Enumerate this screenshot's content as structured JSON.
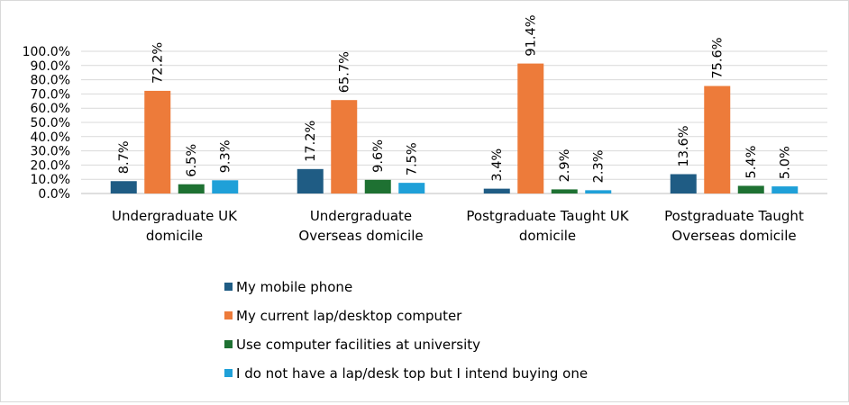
{
  "chart_data": {
    "type": "bar",
    "title": "",
    "xlabel": "",
    "ylabel": "",
    "ylim": [
      0,
      100
    ],
    "y_tick_step": 10,
    "y_tick_labels": [
      "0.0%",
      "10.0%",
      "20.0%",
      "30.0%",
      "40.0%",
      "50.0%",
      "60.0%",
      "70.0%",
      "80.0%",
      "90.0%",
      "100.0%"
    ],
    "grid": true,
    "legend_position": "bottom",
    "categories": [
      [
        "Undergraduate UK",
        "domicile"
      ],
      [
        "Undergraduate",
        "Overseas domicile"
      ],
      [
        "Postgraduate Taught UK",
        "domicile"
      ],
      [
        "Postgraduate Taught",
        "Overseas domicile"
      ]
    ],
    "series": [
      {
        "name": "My mobile phone",
        "color": "#1f5c84",
        "values": [
          8.7,
          17.2,
          3.4,
          13.6
        ],
        "labels": [
          "8.7%",
          "17.2%",
          "3.4%",
          "13.6%"
        ]
      },
      {
        "name": "My current lap/desktop computer",
        "color": "#ed7b3a",
        "values": [
          72.2,
          65.7,
          91.4,
          75.6
        ],
        "labels": [
          "72.2%",
          "65.7%",
          "91.4%",
          "75.6%"
        ]
      },
      {
        "name": "Use computer facilities at university",
        "color": "#1e7132",
        "values": [
          6.5,
          9.6,
          2.9,
          5.4
        ],
        "labels": [
          "6.5%",
          "9.6%",
          "2.9%",
          "5.4%"
        ]
      },
      {
        "name": "I do not have a lap/desk top but I intend buying one",
        "color": "#1fa0d8",
        "values": [
          9.3,
          7.5,
          2.3,
          5.0
        ],
        "labels": [
          "9.3%",
          "7.5%",
          "2.3%",
          "5.0%"
        ]
      }
    ]
  }
}
